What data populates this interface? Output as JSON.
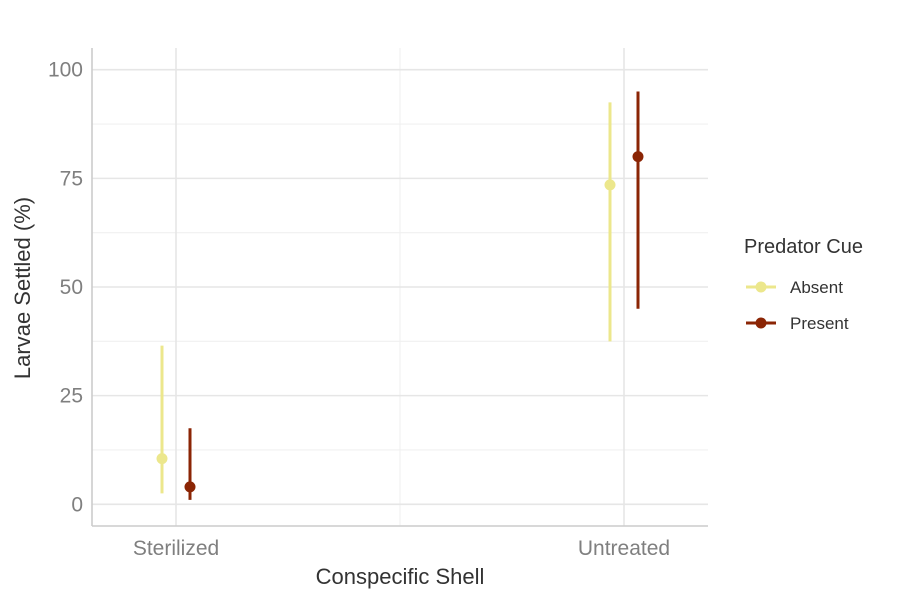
{
  "chart_data": {
    "type": "scatter",
    "title": "",
    "xlabel": "Conspecific Shell",
    "ylabel": "Larvae Settled (%)",
    "categories": [
      "Sterilized",
      "Untreated"
    ],
    "ylim": [
      -5,
      105
    ],
    "yticks": [
      0,
      25,
      50,
      75,
      100
    ],
    "grid": true,
    "legend": {
      "title": "Predator Cue",
      "placement": "right"
    },
    "series": [
      {
        "name": "Absent",
        "color": "#ece78c",
        "values": [
          10.5,
          73.5
        ],
        "lower": [
          2.5,
          37.5
        ],
        "upper": [
          36.5,
          92.5
        ]
      },
      {
        "name": "Present",
        "color": "#8b2505",
        "values": [
          4,
          80
        ],
        "lower": [
          1,
          45
        ],
        "upper": [
          17.5,
          95
        ]
      }
    ]
  }
}
